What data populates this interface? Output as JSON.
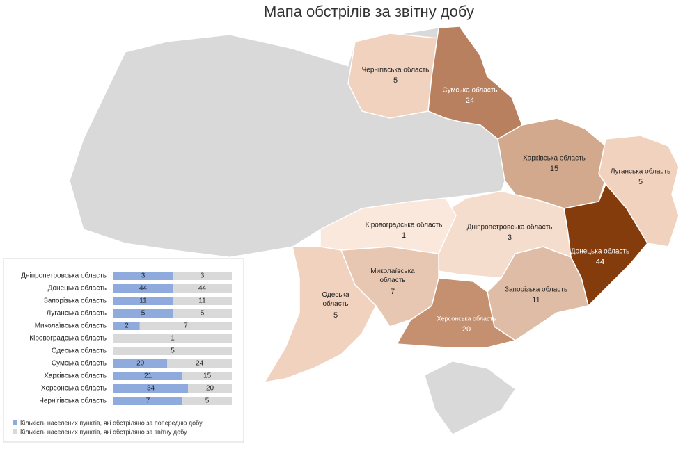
{
  "title": "Мапа обстрілів за звітну добу",
  "regions": [
    {
      "name": "Чернігівська область",
      "value": 5,
      "color": "#f0d2bf"
    },
    {
      "name": "Сумська область",
      "value": 24,
      "color": "#b9805f"
    },
    {
      "name": "Харківська область",
      "value": 15,
      "color": "#d3a98e"
    },
    {
      "name": "Луганська область",
      "value": 5,
      "color": "#f0d2bf"
    },
    {
      "name": "Донецька область",
      "value": 44,
      "color": "#843c0c"
    },
    {
      "name": "Дніпропетровська область",
      "value": 3,
      "color": "#f5ddcd"
    },
    {
      "name": "Запорізька область",
      "value": 11,
      "color": "#dfbca5"
    },
    {
      "name": "Херсонська область",
      "value": 20,
      "color": "#c4906f"
    },
    {
      "name": "Миколаївська область",
      "value": 7,
      "color": "#e8c7b2"
    },
    {
      "name": "Кіровоградська область",
      "value": 1,
      "color": "#fae8dc"
    },
    {
      "name": "Одеська область",
      "value": 5,
      "color": "#f0d2bf"
    }
  ],
  "chart_data": {
    "type": "bar",
    "orientation": "horizontal",
    "stacked": "percent",
    "categories": [
      "Дніпропетровська область",
      "Донецька область",
      "Запорізька область",
      "Луганська область",
      "Миколаївська область",
      "Кіровоградська область",
      "Одеська область",
      "Сумська область",
      "Харківська область",
      "Херсонська область",
      "Чернігівська область"
    ],
    "series": [
      {
        "name": "Кількість населених пунктів, які обстріляно за попередню добу",
        "color": "#8faadc",
        "values": [
          3,
          44,
          11,
          5,
          2,
          null,
          null,
          20,
          21,
          34,
          7
        ]
      },
      {
        "name": "Кількість населених пунктів, які обстріляно за звітну добу",
        "color": "#d9d9d9",
        "values": [
          3,
          44,
          11,
          5,
          7,
          1,
          5,
          24,
          15,
          20,
          5
        ]
      }
    ]
  }
}
